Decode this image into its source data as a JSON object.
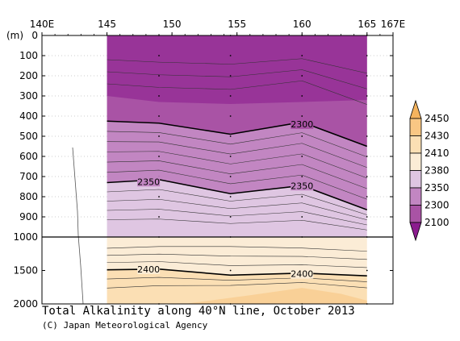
{
  "chart_data": {
    "type": "heatmap",
    "title": "Total Alkalinity along 40°N line, October 2013",
    "credit": "(C) Japan Meteorological Agency",
    "xlim": [
      140,
      167
    ],
    "x_ticks": [
      "140E",
      "145",
      "150",
      "155",
      "160",
      "165",
      "167E"
    ],
    "y_unit_label": "(m)",
    "y_ticks_upper": [
      "0",
      "100",
      "200",
      "300",
      "400",
      "500",
      "600",
      "700",
      "800",
      "900",
      "1000"
    ],
    "y_ticks_lower": [
      "1500",
      "2000"
    ],
    "y_range_upper": [
      0,
      1000
    ],
    "y_range_lower": [
      1000,
      2000
    ],
    "data_extent_lon": [
      145,
      165
    ],
    "station_lons": [
      149,
      154.5,
      160,
      165
    ],
    "colorbar": {
      "levels": [
        "2100",
        "2300",
        "2350",
        "2380",
        "2410",
        "2430",
        "2450"
      ],
      "colors": [
        "#8b1c8e",
        "#a953a5",
        "#c286c2",
        "#dfc6e2",
        "#fbecd6",
        "#fbdfb4",
        "#f9c784",
        "#f4b35e"
      ]
    },
    "contour_labels": [
      {
        "text": "2300",
        "lon": 160,
        "depth": 440
      },
      {
        "text": "2350",
        "lon": 148.2,
        "depth": 725
      },
      {
        "text": "2350",
        "lon": 160,
        "depth": 745
      },
      {
        "text": "2400",
        "lon": 148.2,
        "depth": 1480
      },
      {
        "text": "2400",
        "lon": 160,
        "depth": 1550
      }
    ],
    "major_contours": [
      {
        "level": 2300,
        "lon": [
          145,
          149,
          154.5,
          160,
          165
        ],
        "depth": [
          425,
          435,
          490,
          430,
          550
        ]
      },
      {
        "level": 2350,
        "lon": [
          145,
          149,
          154.5,
          160,
          165
        ],
        "depth": [
          730,
          715,
          785,
          745,
          865
        ]
      },
      {
        "level": 2400,
        "lon": [
          145,
          149,
          154.5,
          160,
          165
        ],
        "depth": [
          1490,
          1480,
          1570,
          1540,
          1580
        ]
      }
    ]
  }
}
